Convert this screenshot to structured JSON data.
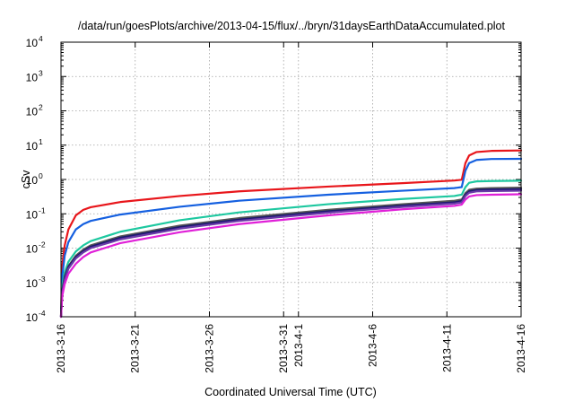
{
  "chart_data": {
    "type": "line",
    "title": "/data/run/goesPlots/archive/2013-04-15/flux/../bryn/31daysEarthDataAccumulated.plot",
    "xlabel": "Coordinated Universal Time (UTC)",
    "ylabel": "cSv",
    "y_scale": "log",
    "ylim": [
      0.0001,
      10000
    ],
    "xlim": [
      "2013-03-16",
      "2013-04-16"
    ],
    "grid": true,
    "x_ticks": [
      {
        "date": "2013-03-16",
        "label": "2013-3-16"
      },
      {
        "date": "2013-03-21",
        "label": "2013-3-21"
      },
      {
        "date": "2013-03-26",
        "label": "2013-3-26"
      },
      {
        "date": "2013-03-31",
        "label": "2013-3-31"
      },
      {
        "date": "2013-04-01",
        "label": "2013-4-1"
      },
      {
        "date": "2013-04-06",
        "label": "2013-4-6"
      },
      {
        "date": "2013-04-11",
        "label": "2013-4-11"
      },
      {
        "date": "2013-04-16",
        "label": "2013-4-16"
      }
    ],
    "y_ticks": [
      {
        "value": 0.0001,
        "base": "10",
        "exp": "-4"
      },
      {
        "value": 0.001,
        "base": "10",
        "exp": "-3"
      },
      {
        "value": 0.01,
        "base": "10",
        "exp": "-2"
      },
      {
        "value": 0.1,
        "base": "10",
        "exp": "-1"
      },
      {
        "value": 1,
        "base": "10",
        "exp": "0"
      },
      {
        "value": 10,
        "base": "10",
        "exp": "1"
      },
      {
        "value": 100,
        "base": "10",
        "exp": "2"
      },
      {
        "value": 1000,
        "base": "10",
        "exp": "3"
      },
      {
        "value": 10000,
        "base": "10",
        "exp": "4"
      }
    ],
    "series": [
      {
        "color": "#e8161b",
        "points": [
          [
            "2013-03-16T00:00",
            0.0001
          ],
          [
            "2013-03-16T02:00",
            0.003
          ],
          [
            "2013-03-16T06:00",
            0.012
          ],
          [
            "2013-03-16T12:00",
            0.035
          ],
          [
            "2013-03-17T00:00",
            0.09
          ],
          [
            "2013-03-17T12:00",
            0.13
          ],
          [
            "2013-03-18T00:00",
            0.155
          ],
          [
            "2013-03-20T00:00",
            0.22
          ],
          [
            "2013-03-24T00:00",
            0.33
          ],
          [
            "2013-03-28T00:00",
            0.45
          ],
          [
            "2013-04-03T00:00",
            0.62
          ],
          [
            "2013-04-08T00:00",
            0.78
          ],
          [
            "2013-04-11T12:00",
            0.93
          ],
          [
            "2013-04-12T00:00",
            0.98
          ],
          [
            "2013-04-12T06:00",
            3.0
          ],
          [
            "2013-04-12T12:00",
            5.0
          ],
          [
            "2013-04-13T00:00",
            6.3
          ],
          [
            "2013-04-14T00:00",
            6.8
          ],
          [
            "2013-04-16T00:00",
            7.0
          ]
        ]
      },
      {
        "color": "#1560e0",
        "points": [
          [
            "2013-03-16T00:00",
            0.0001
          ],
          [
            "2013-03-16T02:00",
            0.0015
          ],
          [
            "2013-03-16T06:00",
            0.006
          ],
          [
            "2013-03-16T12:00",
            0.015
          ],
          [
            "2013-03-17T00:00",
            0.035
          ],
          [
            "2013-03-17T12:00",
            0.05
          ],
          [
            "2013-03-18T00:00",
            0.062
          ],
          [
            "2013-03-20T00:00",
            0.095
          ],
          [
            "2013-03-24T00:00",
            0.16
          ],
          [
            "2013-03-28T00:00",
            0.24
          ],
          [
            "2013-04-03T00:00",
            0.36
          ],
          [
            "2013-04-08T00:00",
            0.47
          ],
          [
            "2013-04-11T12:00",
            0.56
          ],
          [
            "2013-04-12T00:00",
            0.6
          ],
          [
            "2013-04-12T06:00",
            1.8
          ],
          [
            "2013-04-12T12:00",
            3.0
          ],
          [
            "2013-04-13T00:00",
            3.7
          ],
          [
            "2013-04-14T00:00",
            3.95
          ],
          [
            "2013-04-16T00:00",
            4.0
          ]
        ]
      },
      {
        "color": "#1ec8a0",
        "points": [
          [
            "2013-03-16T00:00",
            0.0001
          ],
          [
            "2013-03-16T02:00",
            0.0008
          ],
          [
            "2013-03-16T06:00",
            0.002
          ],
          [
            "2013-03-16T12:00",
            0.004
          ],
          [
            "2013-03-17T00:00",
            0.008
          ],
          [
            "2013-03-17T12:00",
            0.012
          ],
          [
            "2013-03-18T00:00",
            0.016
          ],
          [
            "2013-03-20T00:00",
            0.03
          ],
          [
            "2013-03-24T00:00",
            0.065
          ],
          [
            "2013-03-28T00:00",
            0.11
          ],
          [
            "2013-04-03T00:00",
            0.19
          ],
          [
            "2013-04-08T00:00",
            0.27
          ],
          [
            "2013-04-11T12:00",
            0.33
          ],
          [
            "2013-04-12T00:00",
            0.36
          ],
          [
            "2013-04-12T06:00",
            0.6
          ],
          [
            "2013-04-12T12:00",
            0.8
          ],
          [
            "2013-04-13T00:00",
            0.88
          ],
          [
            "2013-04-14T00:00",
            0.9
          ],
          [
            "2013-04-16T00:00",
            0.92
          ]
        ]
      },
      {
        "color": "#555555",
        "points": [
          [
            "2013-03-16T00:00",
            0.0001
          ],
          [
            "2013-03-16T02:00",
            0.0006
          ],
          [
            "2013-03-16T06:00",
            0.0015
          ],
          [
            "2013-03-16T12:00",
            0.003
          ],
          [
            "2013-03-17T00:00",
            0.006
          ],
          [
            "2013-03-17T12:00",
            0.009
          ],
          [
            "2013-03-18T00:00",
            0.012
          ],
          [
            "2013-03-20T00:00",
            0.022
          ],
          [
            "2013-03-24T00:00",
            0.045
          ],
          [
            "2013-03-28T00:00",
            0.075
          ],
          [
            "2013-04-03T00:00",
            0.13
          ],
          [
            "2013-04-08T00:00",
            0.19
          ],
          [
            "2013-04-11T12:00",
            0.24
          ],
          [
            "2013-04-12T00:00",
            0.26
          ],
          [
            "2013-04-12T06:00",
            0.4
          ],
          [
            "2013-04-12T12:00",
            0.5
          ],
          [
            "2013-04-13T00:00",
            0.54
          ],
          [
            "2013-04-14T00:00",
            0.56
          ],
          [
            "2013-04-16T00:00",
            0.58
          ]
        ]
      },
      {
        "color": "#1c1870",
        "points": [
          [
            "2013-03-16T00:00",
            0.0001
          ],
          [
            "2013-03-16T02:00",
            0.00055
          ],
          [
            "2013-03-16T06:00",
            0.0014
          ],
          [
            "2013-03-16T12:00",
            0.0028
          ],
          [
            "2013-03-17T00:00",
            0.0055
          ],
          [
            "2013-03-17T12:00",
            0.0082
          ],
          [
            "2013-03-18T00:00",
            0.011
          ],
          [
            "2013-03-20T00:00",
            0.02
          ],
          [
            "2013-03-24T00:00",
            0.041
          ],
          [
            "2013-03-28T00:00",
            0.068
          ],
          [
            "2013-04-03T00:00",
            0.118
          ],
          [
            "2013-04-08T00:00",
            0.172
          ],
          [
            "2013-04-11T12:00",
            0.215
          ],
          [
            "2013-04-12T00:00",
            0.235
          ],
          [
            "2013-04-12T06:00",
            0.36
          ],
          [
            "2013-04-12T12:00",
            0.45
          ],
          [
            "2013-04-13T00:00",
            0.49
          ],
          [
            "2013-04-14T00:00",
            0.51
          ],
          [
            "2013-04-16T00:00",
            0.52
          ]
        ]
      },
      {
        "color": "#6a3aa8",
        "points": [
          [
            "2013-03-16T00:00",
            0.0001
          ],
          [
            "2013-03-16T02:00",
            0.0005
          ],
          [
            "2013-03-16T06:00",
            0.0012
          ],
          [
            "2013-03-16T12:00",
            0.0025
          ],
          [
            "2013-03-17T00:00",
            0.005
          ],
          [
            "2013-03-17T12:00",
            0.0075
          ],
          [
            "2013-03-18T00:00",
            0.01
          ],
          [
            "2013-03-20T00:00",
            0.018
          ],
          [
            "2013-03-24T00:00",
            0.037
          ],
          [
            "2013-03-28T00:00",
            0.062
          ],
          [
            "2013-04-03T00:00",
            0.108
          ],
          [
            "2013-04-08T00:00",
            0.158
          ],
          [
            "2013-04-11T12:00",
            0.198
          ],
          [
            "2013-04-12T00:00",
            0.215
          ],
          [
            "2013-04-12T06:00",
            0.33
          ],
          [
            "2013-04-12T12:00",
            0.41
          ],
          [
            "2013-04-13T00:00",
            0.45
          ],
          [
            "2013-04-14T00:00",
            0.46
          ],
          [
            "2013-04-16T00:00",
            0.47
          ]
        ]
      },
      {
        "color": "#e020d8",
        "points": [
          [
            "2013-03-16T00:00",
            0.0001
          ],
          [
            "2013-03-16T02:00",
            0.0004
          ],
          [
            "2013-03-16T06:00",
            0.0009
          ],
          [
            "2013-03-16T12:00",
            0.0018
          ],
          [
            "2013-03-17T00:00",
            0.0035
          ],
          [
            "2013-03-17T12:00",
            0.0055
          ],
          [
            "2013-03-18T00:00",
            0.0075
          ],
          [
            "2013-03-20T00:00",
            0.014
          ],
          [
            "2013-03-24T00:00",
            0.029
          ],
          [
            "2013-03-28T00:00",
            0.05
          ],
          [
            "2013-04-03T00:00",
            0.09
          ],
          [
            "2013-04-08T00:00",
            0.135
          ],
          [
            "2013-04-11T12:00",
            0.17
          ],
          [
            "2013-04-12T00:00",
            0.185
          ],
          [
            "2013-04-12T06:00",
            0.26
          ],
          [
            "2013-04-12T12:00",
            0.32
          ],
          [
            "2013-04-13T00:00",
            0.35
          ],
          [
            "2013-04-14T00:00",
            0.36
          ],
          [
            "2013-04-16T00:00",
            0.37
          ]
        ]
      }
    ]
  }
}
